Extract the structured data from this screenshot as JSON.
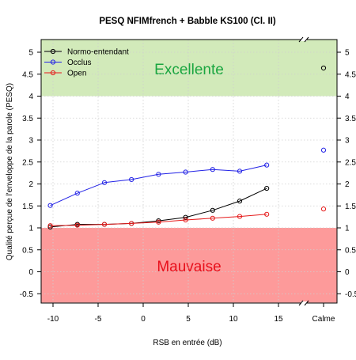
{
  "chart_data": {
    "type": "line",
    "title": "PESQ NFIMfrench + Babble KS100 (Cl. II)",
    "xlabel": "RSB en entrée (dB)",
    "ylabel": "Qualité perçue de l'enveloppe de la parole (PESQ)",
    "x_ticks": [
      "-10",
      "-5",
      "0",
      "5",
      "10",
      "15"
    ],
    "extra_x_tick": "Calme",
    "y_ticks_left": [
      "-0.5",
      "0",
      "0.5",
      "1",
      "1.5",
      "2",
      "2.5",
      "3",
      "3.5",
      "4",
      "4.5",
      "5"
    ],
    "y_ticks_right": [
      "-0.5",
      "0",
      "0.5",
      "1",
      "1.5",
      "2",
      "2.5",
      "3",
      "3.5",
      "4",
      "4.5",
      "5"
    ],
    "xlim": [
      -11.5,
      15
    ],
    "ylim": [
      -0.7,
      5.3
    ],
    "grid": true,
    "legend_position": "top-left",
    "regions": [
      {
        "label": "Excellente",
        "ymin": 4,
        "ymax": 5.3,
        "fill": "#d2eaba",
        "text_color": "#1aa640"
      },
      {
        "label": "Mauvaise",
        "ymin": -0.7,
        "ymax": 1,
        "fill": "#fd9a9a",
        "text_color": "#e8101c"
      }
    ],
    "x": [
      -10.3,
      -7.3,
      -4.3,
      -1.3,
      1.7,
      4.7,
      7.7,
      10.7,
      13.7
    ],
    "series": [
      {
        "name": "Normo-entendant",
        "color": "#000000",
        "values": [
          1.02,
          1.08,
          1.08,
          1.1,
          1.16,
          1.24,
          1.4,
          1.61,
          1.9
        ],
        "calme": 4.64
      },
      {
        "name": "Occlus",
        "color": "#2222e6",
        "values": [
          1.51,
          1.79,
          2.03,
          2.1,
          2.22,
          2.27,
          2.33,
          2.29,
          2.43
        ],
        "calme": 2.77
      },
      {
        "name": "Open",
        "color": "#e61a1a",
        "values": [
          1.05,
          1.06,
          1.08,
          1.1,
          1.13,
          1.18,
          1.22,
          1.26,
          1.31
        ],
        "calme": 1.43
      }
    ]
  }
}
